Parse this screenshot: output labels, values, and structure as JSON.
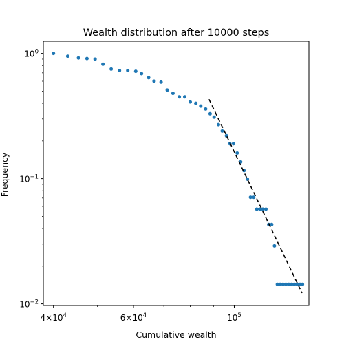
{
  "chart_data": {
    "type": "scatter",
    "title": "Wealth distribution after 10000 steps",
    "xlabel": "Cumulative wealth",
    "ylabel": "Frequency",
    "xscale": "log",
    "yscale": "log",
    "xlim": [
      38000,
      146000
    ],
    "ylim": [
      0.0097,
      1.25
    ],
    "x_ticks": [
      {
        "value": 40000,
        "base": "4×10",
        "exp": "4"
      },
      {
        "value": 60000,
        "base": "6×10",
        "exp": "4"
      },
      {
        "value": 100000,
        "base": "10",
        "exp": "5"
      }
    ],
    "y_ticks": [
      {
        "value": 1,
        "base": "10",
        "exp": "0"
      },
      {
        "value": 0.1,
        "base": "10",
        "exp": "−1"
      },
      {
        "value": 0.01,
        "base": "10",
        "exp": "−2"
      }
    ],
    "grid": false,
    "legend": "none",
    "marker_color": "#1f77b4",
    "series": [
      {
        "points": [
          [
            40000,
            1.0
          ],
          [
            43000,
            0.95
          ],
          [
            45400,
            0.92
          ],
          [
            47400,
            0.91
          ],
          [
            49400,
            0.9
          ],
          [
            51400,
            0.82
          ],
          [
            53600,
            0.75
          ],
          [
            55900,
            0.73
          ],
          [
            58300,
            0.73
          ],
          [
            60700,
            0.72
          ],
          [
            62500,
            0.69
          ],
          [
            64800,
            0.64
          ],
          [
            66600,
            0.6
          ],
          [
            69000,
            0.59
          ],
          [
            71200,
            0.51
          ],
          [
            73300,
            0.48
          ],
          [
            75700,
            0.45
          ],
          [
            77800,
            0.45
          ],
          [
            80000,
            0.41
          ],
          [
            82300,
            0.4
          ],
          [
            84400,
            0.38
          ],
          [
            86500,
            0.36
          ],
          [
            88500,
            0.33
          ],
          [
            90300,
            0.31
          ],
          [
            92300,
            0.27
          ],
          [
            94100,
            0.24
          ],
          [
            96100,
            0.22
          ],
          [
            97800,
            0.19
          ],
          [
            99600,
            0.19
          ],
          [
            101500,
            0.16
          ],
          [
            103300,
            0.136
          ],
          [
            105100,
            0.116
          ],
          [
            106900,
            0.099
          ],
          [
            108600,
            0.071
          ],
          [
            110400,
            0.071
          ],
          [
            112100,
            0.057
          ],
          [
            113900,
            0.057
          ],
          [
            115600,
            0.057
          ],
          [
            117400,
            0.057
          ],
          [
            119100,
            0.043
          ],
          [
            120900,
            0.043
          ],
          [
            122600,
            0.029
          ],
          [
            124400,
            0.0143
          ],
          [
            126200,
            0.0143
          ],
          [
            128000,
            0.0143
          ],
          [
            129900,
            0.0143
          ],
          [
            131800,
            0.0143
          ],
          [
            133700,
            0.0143
          ],
          [
            135600,
            0.0143
          ],
          [
            137600,
            0.0143
          ],
          [
            139600,
            0.0143
          ],
          [
            141300,
            0.0143
          ]
        ]
      }
    ],
    "fit_line": {
      "style": "dashed",
      "color": "#000000",
      "x": [
        88000,
        141000
      ],
      "y": [
        0.43,
        0.0122
      ]
    }
  }
}
